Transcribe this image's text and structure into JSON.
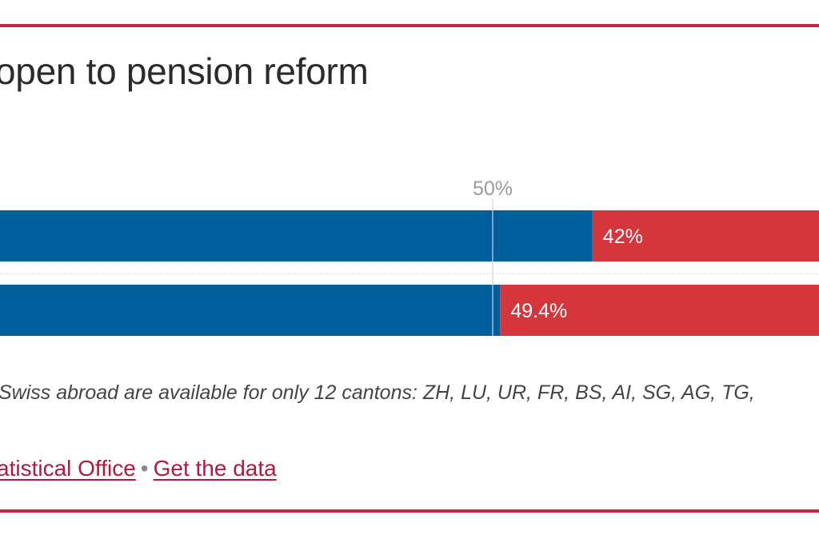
{
  "header": {
    "title": "open to pension reform"
  },
  "chart_data": {
    "type": "bar",
    "orientation": "horizontal",
    "stacked": true,
    "reference_line": {
      "value": 50,
      "label": "50%"
    },
    "xlim": [
      0,
      100
    ],
    "series": [
      {
        "name": "",
        "color": "#005f9a",
        "values": [
          58,
          50.6
        ]
      },
      {
        "name": "",
        "color": "#d4363c",
        "values": [
          42,
          49.4
        ],
        "labels": [
          "42%",
          "49.4%"
        ]
      }
    ]
  },
  "footer": {
    "note": "Swiss abroad are available for only 12 cantons: ZH, LU, UR, FR, BS, AI, SG, AG, TG,",
    "source_link": "atistical Office",
    "separator": "•",
    "data_link": "Get the data"
  }
}
